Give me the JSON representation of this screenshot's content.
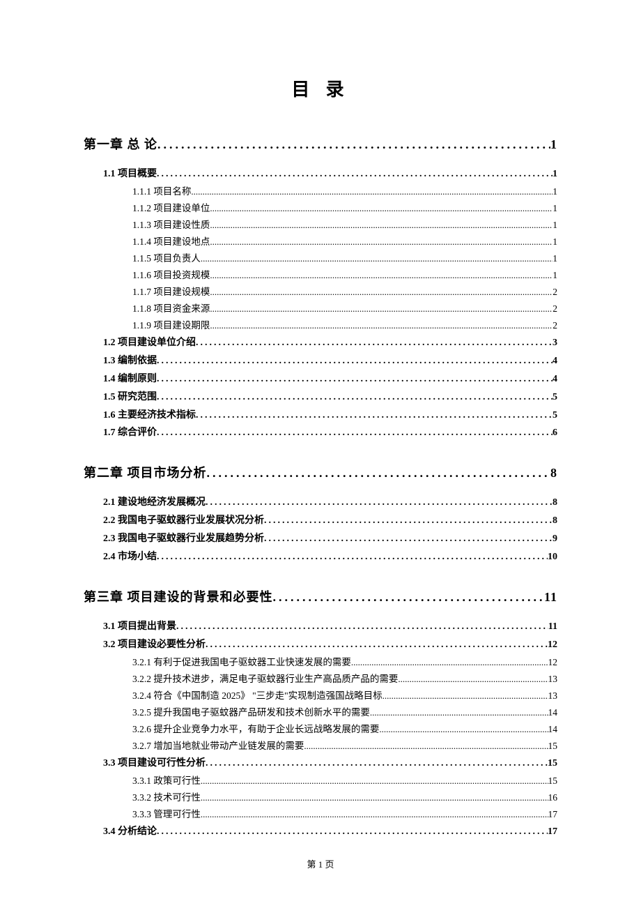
{
  "doc_title": "目 录",
  "footer": "第 1 页",
  "entries": [
    {
      "level": 0,
      "label": "第一章 总 论",
      "page": "1"
    },
    {
      "level": 1,
      "label": "1.1 项目概要",
      "page": "1"
    },
    {
      "level": 2,
      "label": "1.1.1 项目名称",
      "page": "1"
    },
    {
      "level": 2,
      "label": "1.1.2 项目建设单位",
      "page": "1"
    },
    {
      "level": 2,
      "label": "1.1.3 项目建设性质",
      "page": "1"
    },
    {
      "level": 2,
      "label": "1.1.4 项目建设地点",
      "page": "1"
    },
    {
      "level": 2,
      "label": "1.1.5 项目负责人",
      "page": "1"
    },
    {
      "level": 2,
      "label": "1.1.6 项目投资规模",
      "page": "1"
    },
    {
      "level": 2,
      "label": "1.1.7 项目建设规模",
      "page": "2"
    },
    {
      "level": 2,
      "label": "1.1.8 项目资金来源",
      "page": "2"
    },
    {
      "level": 2,
      "label": "1.1.9 项目建设期限",
      "page": "2"
    },
    {
      "level": 1,
      "label": "1.2 项目建设单位介绍",
      "page": "3"
    },
    {
      "level": 1,
      "label": "1.3 编制依据",
      "page": "4"
    },
    {
      "level": 1,
      "label": "1.4 编制原则",
      "page": "4"
    },
    {
      "level": 1,
      "label": "1.5 研究范围",
      "page": "5"
    },
    {
      "level": 1,
      "label": "1.6 主要经济技术指标",
      "page": "5"
    },
    {
      "level": 1,
      "label": "1.7 综合评价",
      "page": "6"
    },
    {
      "level": 0,
      "label": "第二章 项目市场分析",
      "page": "8"
    },
    {
      "level": 1,
      "label": "2.1 建设地经济发展概况",
      "page": "8"
    },
    {
      "level": 1,
      "label": "2.2 我国电子驱蚊器行业发展状况分析",
      "page": "8"
    },
    {
      "level": 1,
      "label": "2.3 我国电子驱蚊器行业发展趋势分析",
      "page": "9"
    },
    {
      "level": 1,
      "label": "2.4 市场小结",
      "page": "10"
    },
    {
      "level": 0,
      "label": "第三章 项目建设的背景和必要性",
      "page": "11"
    },
    {
      "level": 1,
      "label": "3.1 项目提出背景",
      "page": "11"
    },
    {
      "level": 1,
      "label": "3.2 项目建设必要性分析",
      "page": "12"
    },
    {
      "level": 2,
      "label": "3.2.1 有利于促进我国电子驱蚊器工业快速发展的需要",
      "page": "12"
    },
    {
      "level": 2,
      "label": "3.2.2 提升技术进步，满足电子驱蚊器行业生产高品质产品的需要",
      "page": "13"
    },
    {
      "level": 2,
      "label": "3.2.4 符合《中国制造 2025》 \"三步走\"实现制造强国战略目标",
      "page": "13"
    },
    {
      "level": 2,
      "label": "3.2.5 提升我国电子驱蚊器产品研发和技术创新水平的需要",
      "page": "14"
    },
    {
      "level": 2,
      "label": "3.2.6 提升企业竞争力水平，有助于企业长远战略发展的需要",
      "page": "14"
    },
    {
      "level": 2,
      "label": "3.2.7 增加当地就业带动产业链发展的需要",
      "page": "15"
    },
    {
      "level": 1,
      "label": "3.3 项目建设可行性分析",
      "page": "15"
    },
    {
      "level": 2,
      "label": "3.3.1 政策可行性",
      "page": "15"
    },
    {
      "level": 2,
      "label": "3.3.2 技术可行性",
      "page": "16"
    },
    {
      "level": 2,
      "label": "3.3.3 管理可行性",
      "page": "17"
    },
    {
      "level": 1,
      "label": "3.4 分析结论",
      "page": "17"
    }
  ],
  "colors": {
    "text": "#000000",
    "background": "#ffffff"
  },
  "typography": {
    "title_fontsize": 26,
    "chapter_fontsize": 18,
    "section_fontsize": 14,
    "subsection_fontsize": 13.5,
    "footer_fontsize": 13
  }
}
